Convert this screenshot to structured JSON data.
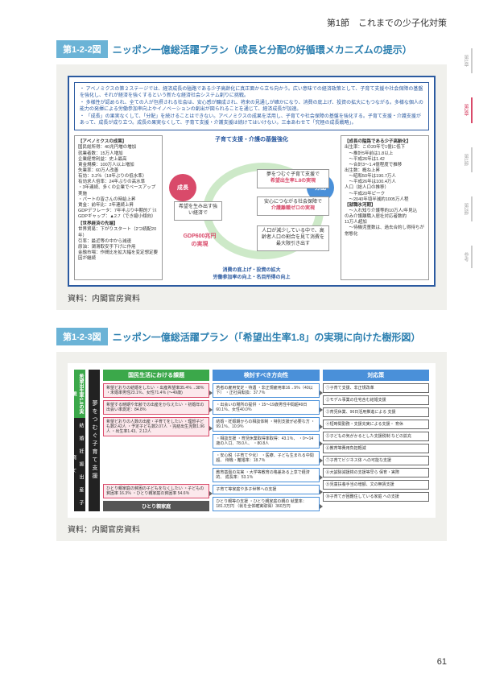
{
  "page": {
    "section_header": "第1節　これまでの少子化対策",
    "page_number": "61"
  },
  "side_tabs": [
    "第1章",
    "第2章",
    "第1節",
    "第2節",
    "参考"
  ],
  "figure1": {
    "tag": "第1-2-2図",
    "title": "ニッポン一億総活躍プラン（成長と分配の好循環メカニズムの提示）",
    "source": "資料：内閣官房資料",
    "bullets": [
      "アベノミクスの第２ステージでは、経済成長の隘路である少子高齢化に真正面から立ち向かう。広い意味での経済政策として、子育て支援や社会保障の基盤を強化し、それが経済を強くするという新たな経済社会システム創りに挑戦。",
      "多様性が認められ、全ての人が包摂される社会は、安心感が醸成され、将来の見通しが確かになり、消費の底上げ、投資の拡大にもつながる。多様な個人の能力の発揮による労働参加率向上やイノベーションの創出が図られることを通じて、経済成長が加速。",
      "「成長」の果実なくして、「分配」を続けることはできない。アベノミクスの成果を活用し、子育てや社会保障の基盤を強化する。子育て支援・介護支援があって、成長が成り立つ。成長の果実なくして、子育て支援・介護支援は続けてはいけない。三本あわせて「究極の成長戦略」。"
    ],
    "left_box_title": "【アベノミクスの成果】",
    "left_box_lines": [
      "国民総所得：40兆円増の増加",
      "就業者数：15万人増加",
      "企業経常利益：史上最高",
      "賃金規模：100万人以上増加",
      "失業率：60万人改善",
      "有効：3.2％（18年ぶりの低水準）",
      "有効求人倍率：24年ぶりの高水準",
      "・3年連続、多くの企業でベースアップ実施",
      "・パートの皆さんの時給上昇",
      "賃金：前年比：2年連続上昇",
      "GDPデフレータ：7年半ぶり中期的ﾌﾟﾗｽ",
      "GDPギャップ：▲2.7（でき縮小傾向）",
      "【世界経済の先端】",
      "世界貿易：下がりスタート（2つ続配20年）",
      "引率：最近等の中から減速",
      "原油：潤滑取安手下げに作用",
      "金融市場：作間比を拡大幅を変定想定要因が継続"
    ],
    "right_box_title": "【成長の隘路である少子高齢化】",
    "right_box_lines": [
      "出生率：この20年で1億に低下",
      "　～推計5年前は1.8以上",
      "　～平成26年は1.42",
      "　～合計3～1.4億程度で推移",
      "出生数：概ね上昇",
      "　～昭和50年は190.7万人",
      "　～平成26年は100.4万人",
      "人口（総人口の推移）",
      "　～平成20年ピーク",
      "　～2040年頃半減約1005万人程",
      "【就職氷河期】",
      "　～入れ知り介護等約10万人/年見込",
      "のみ介護離職入居社対応者数約",
      "11万人超加",
      "　～待機児童数は、過去合約し得待ちが常態化"
    ],
    "center_top": "子育て支援・介護の基盤強化",
    "circle_left": "成長",
    "circle_right": "分配",
    "cb_left_top": "希望を生み出す強い経済で",
    "gdp_line1": "GDP600兆円",
    "gdp_line2": "の実現",
    "cb_right_a_top": "夢をつむぐ子育て支援で",
    "cb_right_a_main": "希望出生率1.8の実現",
    "cb_right_b_top": "安心につながる社会保障で",
    "cb_right_b_main": "介護離職ゼロの実現",
    "cb_right_c_sub": "人口が減少している中で、高齢者人口の割合を見て消費を最大限引き出す",
    "bottom_left": "消費の底上げ・投資の拡大",
    "bottom_center": "労働参加率の向上・名目所得の向上"
  },
  "figure2": {
    "tag": "第1-2-3図",
    "title": "ニッポン一億総活躍プラン（「希望出生率1.8」の実現に向けた樹形図）",
    "source": "資料：内閣官房資料",
    "left_top": "希望出生率1.8の実現",
    "left_band": "結　婚　妊　娠　出　産　子　育　て",
    "left_vert": "夢をつむぐ子育て支援",
    "bottom_box": "ひとり親家庭",
    "col_heads": [
      "国民生活における課題",
      "検討すべき方向性",
      "対応策"
    ],
    "colA": [
      "希望どおりの結婚をしたい\n・出産希望率35.4％→38％\n・未婚率男性23.1％、女性71.4％\n(～49歳)",
      "希望する時期や年齢での出産をかなえたい\n・初婚年の出会い率測定：84.8％",
      "希望どおりの人数の出産・子育てをしたい\n・理想子ども数2.42人\n・予定子ども数2.07人\n・完結出生児数1.96人\n・出生率1.43、2.12人",
      "ひとり親家庭の貧困の子どもをなくしたい\n・子どもの貧困率\n16.3％\n・ひとり親家庭の貧困率\n54.6％"
    ],
    "colB": [
      "若者の雇用安定・待遇\n・非正規雇用率16→9％（40以下）\n・正社員転換：37.7％",
      "・出会いの場所の提供\n・15～19歳男性中間超49日\n60.1％、女性40.0％",
      "結婚・妊娠期からの相談体制\n・特別支援が必要な方\n・99.1％、10.9％",
      "・相談支援\n・育児休業取得率取得：43.1％、\n・0～14歳の人口、78.0人、\n・80.8人",
      "・安心税（子育てや化）\n・医療、子ども生まれる中間超、\n待機・離婚率：18.7％",
      "教育基盤の充実\n・大学等教育の格差ある上享で経済的、\n成長率：53.1％",
      "子育て等家庭や多子世帯への支援",
      "ひとり親等の支援\n・ひとり親家庭の親の\n就業率：181.3万円\n（就を全体確実取得）360万円"
    ],
    "colC": [
      "①子育て支援、非正規改革",
      "②モデル事業の住宅含む結婚支援",
      "③育児休業、96日活用推進による\n支援",
      "④短時間勤務・支援充実による支援・\n育休",
      "⑤子どもの気がかるとした支援税制\nなどの拡充",
      "⑥教育等費用負担軽減",
      "⑦子育てビジネス体\nへの可能な支援",
      "⑧大誠除減援検の支援等早ら\n保育・実際",
      "⑨児童扶養手当の増額、文の無賃支援",
      "⑩子育てが困難住している家庭\nへの支援"
    ]
  }
}
